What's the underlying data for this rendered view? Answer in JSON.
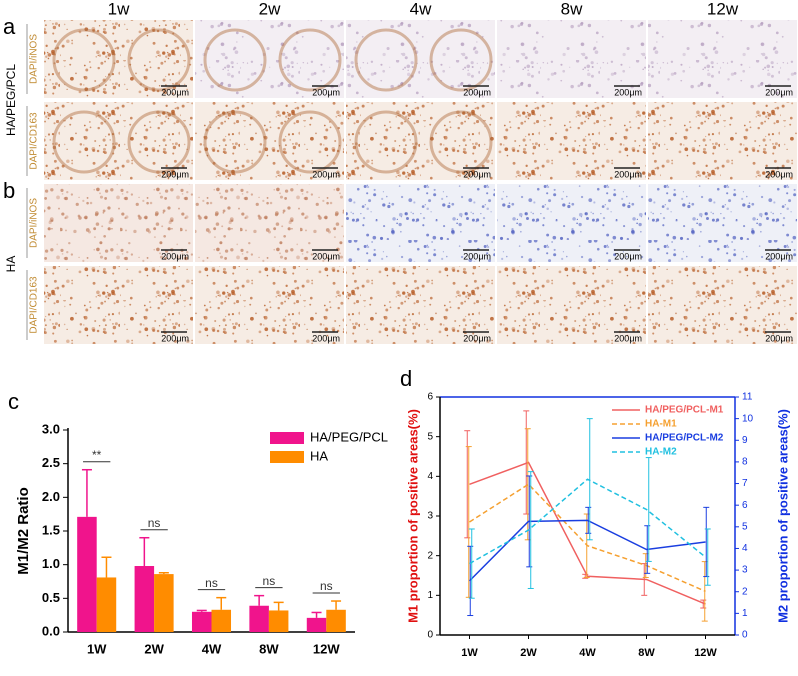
{
  "micrographs": {
    "panel_labels": [
      "a",
      "b"
    ],
    "columns": [
      "1w",
      "2w",
      "4w",
      "8w",
      "12w"
    ],
    "groups": [
      {
        "name": "HA/PEG/PCL",
        "rows": [
          "DAPI/iNOS",
          "DAPI/CD163"
        ]
      },
      {
        "name": "HA",
        "rows": [
          "DAPI/iNOS",
          "DAPI/CD163"
        ]
      }
    ],
    "scale_bar": "200μm"
  },
  "chart_data": [
    {
      "type": "bar",
      "panel_label": "c",
      "ylabel": "M1/M2 Ratio",
      "categories": [
        "1W",
        "2W",
        "4W",
        "8W",
        "12W"
      ],
      "series": [
        {
          "name": "HA/PEG/PCL",
          "color": "#f0148c",
          "values": [
            1.71,
            0.98,
            0.3,
            0.39,
            0.21
          ],
          "errors": [
            0.7,
            0.42,
            0.02,
            0.15,
            0.08
          ]
        },
        {
          "name": "HA",
          "color": "#ff8c00",
          "values": [
            0.81,
            0.86,
            0.33,
            0.32,
            0.33
          ],
          "errors": [
            0.3,
            0.02,
            0.18,
            0.12,
            0.13
          ]
        }
      ],
      "annotations": [
        "**",
        "ns",
        "ns",
        "ns",
        "ns"
      ],
      "ylim": [
        0,
        3
      ],
      "yticks": [
        {
          "value": 0,
          "label": "0.0"
        },
        {
          "value": 0.5,
          "label": "0.5"
        },
        {
          "value": 1,
          "label": "1.0"
        },
        {
          "value": 1.5,
          "label": "1.5"
        },
        {
          "value": 2,
          "label": "2.0"
        },
        {
          "value": 2.5,
          "label": "2.5"
        },
        {
          "value": 3,
          "label": "3.0"
        }
      ],
      "legend": "upper right"
    },
    {
      "type": "line",
      "panel_label": "d",
      "ylabel": "M1 proportion of positive areas(%)",
      "y2label": "M2 proportion of positive areas(%)",
      "ylabel_color": "#e01010",
      "y2label_color": "#1030e0",
      "categories": [
        "1W",
        "2W",
        "4W",
        "8W",
        "12W"
      ],
      "series": [
        {
          "name": "HA/PEG/PCL-M1",
          "color": "#f06060",
          "dash": false,
          "axis": "y",
          "values": [
            3.8,
            4.35,
            1.48,
            1.4,
            0.78
          ],
          "errors": [
            1.35,
            1.3,
            0.05,
            0.4,
            0.1
          ]
        },
        {
          "name": "HA-M1",
          "color": "#f5a030",
          "dash": true,
          "axis": "y",
          "values": [
            2.85,
            3.8,
            2.25,
            1.75,
            1.1
          ],
          "errors": [
            1.9,
            1.4,
            0.8,
            0.3,
            0.75
          ]
        },
        {
          "name": "HA/PEG/PCL-M2",
          "color": "#1a3ee0",
          "dash": false,
          "axis": "y2",
          "values": [
            2.5,
            5.25,
            5.3,
            3.95,
            4.3
          ],
          "errors": [
            1.6,
            2.1,
            0.6,
            1.1,
            1.6
          ]
        },
        {
          "name": "HA-M2",
          "color": "#20c0e0",
          "dash": true,
          "axis": "y2",
          "values": [
            3.3,
            4.85,
            7.2,
            5.8,
            3.6
          ],
          "errors": [
            1.6,
            2.7,
            2.8,
            2.4,
            1.3
          ]
        }
      ],
      "ylim": [
        0,
        6
      ],
      "yticks": [
        0,
        1,
        2,
        3,
        4,
        5,
        6
      ],
      "y2lim": [
        0,
        11
      ],
      "y2ticks": [
        0,
        1,
        2,
        3,
        4,
        5,
        6,
        7,
        8,
        9,
        10,
        11
      ],
      "legend": "upper right"
    }
  ]
}
